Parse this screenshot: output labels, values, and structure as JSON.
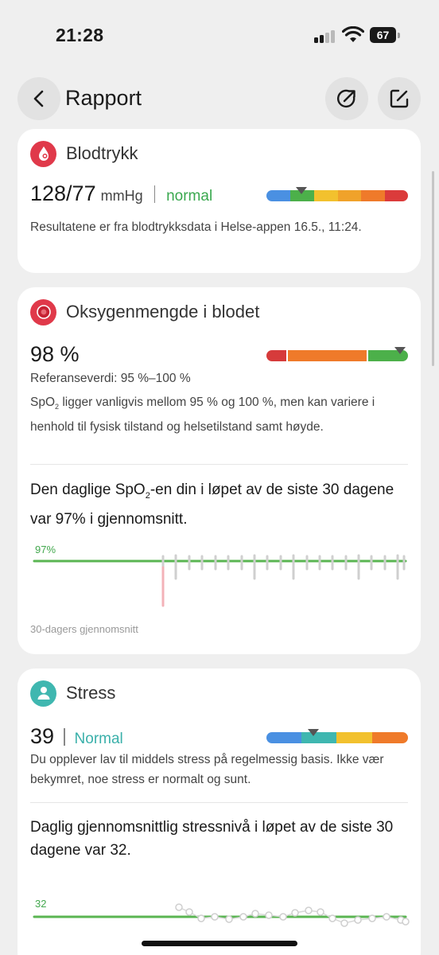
{
  "status_bar": {
    "time": "21:28",
    "battery": "67"
  },
  "header": {
    "title": "Rapport",
    "back_icon": "chevron-left-icon",
    "share_icon": "share-icon",
    "edit_icon": "edit-icon"
  },
  "blood_pressure": {
    "title": "Blodtrykk",
    "value": "128/77",
    "unit": "mmHg",
    "status": "normal",
    "gauge_level": 0.25,
    "note": "Resultatene er fra blodtrykksdata i Helse-appen 16.5., 11:24.",
    "colors": [
      "#4a90e2",
      "#4cb04a",
      "#f2c12e",
      "#f0a22a",
      "#ef7a2a",
      "#db3b3b"
    ]
  },
  "oxygen": {
    "title": "Oksygenmengde i blodet",
    "value": "98 %",
    "reference": "Referanseverdi: 95 %–100 %",
    "note_prefix": "SpO",
    "note_sub": "2",
    "note_rest": " ligger vanligvis mellom 95 % og 100 %, men kan variere i henhold til fysisk tilstand og helsetilstand samt høyde.",
    "summary_prefix": "Den daglige SpO",
    "summary_sub": "2",
    "summary_rest": "-en din i løpet av de siste 30 dagene var 97% i gjennomsnitt.",
    "avg_label": "97%",
    "caption": "30-dagers gjennomsnitt",
    "gauge_level": 0.94
  },
  "stress": {
    "title": "Stress",
    "value": "39",
    "status": "Normal",
    "note": "Du opplever lav til middels stress på regelmessig basis. Ikke vær bekymret, noe stress er normalt og sunt.",
    "summary": "Daglig gjennomsnittlig stressnivå i løpet av de siste 30 dagene var 32.",
    "avg_label": "32",
    "gauge_level": 0.33
  }
}
